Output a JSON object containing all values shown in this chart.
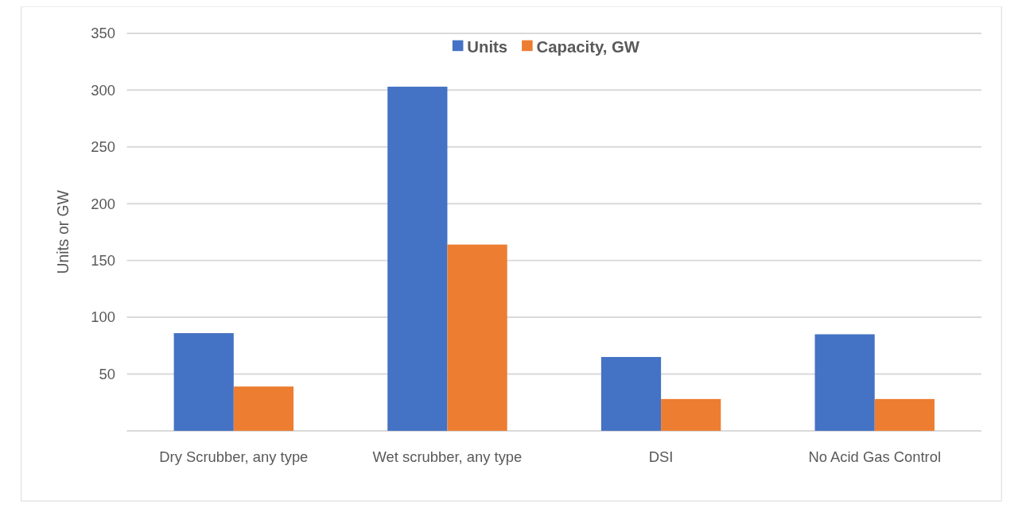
{
  "chart_data": {
    "type": "bar",
    "ylabel": "Units or GW",
    "categories": [
      "Dry Scrubber, any type",
      "Wet scrubber, any type",
      "DSI",
      "No Acid Gas Control"
    ],
    "series": [
      {
        "name": "Units",
        "color": "#4472c4",
        "values": [
          86,
          303,
          65,
          85
        ]
      },
      {
        "name": "Capacity, GW",
        "color": "#ed7d31",
        "values": [
          39,
          164,
          28,
          28
        ]
      }
    ],
    "ylim": [
      0,
      350
    ],
    "yticks": [
      {
        "value": 0,
        "label": null
      },
      50,
      100,
      150,
      200,
      250,
      300,
      350
    ],
    "grid": "y",
    "legend": "top"
  }
}
